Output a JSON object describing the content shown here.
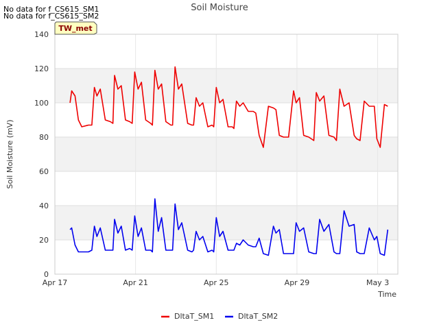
{
  "notes": [
    "No data for f_CS615_SM1",
    "No data for f_CS615_SM2"
  ],
  "badge": "TW_met",
  "chart_data": {
    "type": "line",
    "title": "Soil Moisture",
    "xlabel": "Time",
    "ylabel": "Soil Moisture (mV)",
    "ylim": [
      0,
      140
    ],
    "yticks": [
      0,
      20,
      40,
      60,
      80,
      100,
      120,
      140
    ],
    "xlim": [
      "2023-04-17",
      "2023-05-04"
    ],
    "xticks": [
      {
        "date": "2023-04-17",
        "label": "Apr 17"
      },
      {
        "date": "2023-04-21",
        "label": "Apr 21"
      },
      {
        "date": "2023-04-25",
        "label": "Apr 25"
      },
      {
        "date": "2023-04-29",
        "label": "Apr 29"
      },
      {
        "date": "2023-05-03",
        "label": "May 3"
      }
    ],
    "grid": true,
    "legend": "bottom",
    "series": [
      {
        "name": "DltaT_SM1",
        "color": "#ee0000",
        "x": [
          "2023-04-17 18:00",
          "2023-04-17 20:00",
          "2023-04-18 00:00",
          "2023-04-18 04:00",
          "2023-04-18 08:00",
          "2023-04-18 16:00",
          "2023-04-18 20:00",
          "2023-04-18 23:00",
          "2023-04-19 02:00",
          "2023-04-19 06:00",
          "2023-04-19 12:00",
          "2023-04-19 18:00",
          "2023-04-19 21:00",
          "2023-04-19 23:00",
          "2023-04-20 03:00",
          "2023-04-20 07:00",
          "2023-04-20 12:00",
          "2023-04-20 17:00",
          "2023-04-20 20:00",
          "2023-04-20 23:00",
          "2023-04-21 03:00",
          "2023-04-21 07:00",
          "2023-04-21 12:00",
          "2023-04-21 18:00",
          "2023-04-21 20:00",
          "2023-04-21 23:00",
          "2023-04-22 03:00",
          "2023-04-22 07:00",
          "2023-04-22 12:00",
          "2023-04-22 18:00",
          "2023-04-22 20:00",
          "2023-04-22 23:00",
          "2023-04-23 03:00",
          "2023-04-23 07:00",
          "2023-04-23 14:00",
          "2023-04-23 19:00",
          "2023-04-23 21:00",
          "2023-04-24 00:00",
          "2023-04-24 04:00",
          "2023-04-24 08:00",
          "2023-04-24 14:00",
          "2023-04-24 19:00",
          "2023-04-24 21:00",
          "2023-04-25 00:00",
          "2023-04-25 04:00",
          "2023-04-25 08:00",
          "2023-04-25 14:00",
          "2023-04-25 19:00",
          "2023-04-25 21:00",
          "2023-04-26 00:00",
          "2023-04-26 04:00",
          "2023-04-26 08:00",
          "2023-04-26 14:00",
          "2023-04-26 20:00",
          "2023-04-26 23:00",
          "2023-04-27 03:00",
          "2023-04-27 08:00",
          "2023-04-27 14:00",
          "2023-04-27 20:00",
          "2023-04-27 23:00",
          "2023-04-28 03:00",
          "2023-04-28 08:00",
          "2023-04-28 14:00",
          "2023-04-28 20:00",
          "2023-04-28 23:00",
          "2023-04-29 03:00",
          "2023-04-29 08:00",
          "2023-04-29 14:00",
          "2023-04-29 20:00",
          "2023-04-29 23:00",
          "2023-04-30 03:00",
          "2023-04-30 08:00",
          "2023-04-30 14:00",
          "2023-04-30 20:00",
          "2023-04-30 23:00",
          "2023-05-01 03:00",
          "2023-05-01 08:00",
          "2023-05-01 14:00",
          "2023-05-01 20:00",
          "2023-05-01 23:00",
          "2023-05-02 03:00",
          "2023-05-02 08:00",
          "2023-05-02 14:00",
          "2023-05-02 20:00",
          "2023-05-02 23:00",
          "2023-05-03 03:00",
          "2023-05-03 08:00",
          "2023-05-03 12:00"
        ],
        "y": [
          100,
          107,
          104,
          90,
          86,
          87,
          87,
          109,
          104,
          108,
          90,
          89,
          88,
          116,
          108,
          110,
          90,
          89,
          88,
          118,
          108,
          112,
          90,
          88,
          87,
          119,
          108,
          111,
          89,
          87,
          87,
          121,
          108,
          111,
          88,
          87,
          87,
          103,
          98,
          100,
          86,
          87,
          86,
          109,
          100,
          102,
          86,
          86,
          85,
          101,
          98,
          100,
          95,
          95,
          94,
          81,
          74,
          98,
          97,
          96,
          81,
          80,
          80,
          107,
          100,
          103,
          81,
          80,
          78,
          106,
          101,
          104,
          81,
          80,
          78,
          108,
          98,
          100,
          81,
          79,
          78,
          101,
          98,
          98,
          79,
          74,
          99,
          98
        ]
      },
      {
        "name": "DltaT_SM2",
        "color": "#0000ee",
        "x": [
          "2023-04-17 18:00",
          "2023-04-17 20:00",
          "2023-04-18 00:00",
          "2023-04-18 04:00",
          "2023-04-18 08:00",
          "2023-04-18 16:00",
          "2023-04-18 20:00",
          "2023-04-18 23:00",
          "2023-04-19 02:00",
          "2023-04-19 06:00",
          "2023-04-19 12:00",
          "2023-04-19 18:00",
          "2023-04-19 21:00",
          "2023-04-19 23:00",
          "2023-04-20 03:00",
          "2023-04-20 07:00",
          "2023-04-20 12:00",
          "2023-04-20 17:00",
          "2023-04-20 20:00",
          "2023-04-20 23:00",
          "2023-04-21 03:00",
          "2023-04-21 07:00",
          "2023-04-21 12:00",
          "2023-04-21 18:00",
          "2023-04-21 20:00",
          "2023-04-21 23:00",
          "2023-04-22 03:00",
          "2023-04-22 07:00",
          "2023-04-22 12:00",
          "2023-04-22 18:00",
          "2023-04-22 20:00",
          "2023-04-22 23:00",
          "2023-04-23 03:00",
          "2023-04-23 07:00",
          "2023-04-23 14:00",
          "2023-04-23 19:00",
          "2023-04-23 21:00",
          "2023-04-24 00:00",
          "2023-04-24 04:00",
          "2023-04-24 08:00",
          "2023-04-24 14:00",
          "2023-04-24 19:00",
          "2023-04-24 21:00",
          "2023-04-25 00:00",
          "2023-04-25 04:00",
          "2023-04-25 08:00",
          "2023-04-25 14:00",
          "2023-04-25 19:00",
          "2023-04-25 21:00",
          "2023-04-26 00:00",
          "2023-04-26 04:00",
          "2023-04-26 08:00",
          "2023-04-26 14:00",
          "2023-04-26 20:00",
          "2023-04-26 23:00",
          "2023-04-27 03:00",
          "2023-04-27 08:00",
          "2023-04-27 14:00",
          "2023-04-27 20:00",
          "2023-04-27 23:00",
          "2023-04-28 03:00",
          "2023-04-28 08:00",
          "2023-04-28 14:00",
          "2023-04-28 20:00",
          "2023-04-28 23:00",
          "2023-04-29 03:00",
          "2023-04-29 08:00",
          "2023-04-29 14:00",
          "2023-04-29 20:00",
          "2023-04-29 23:00",
          "2023-04-30 03:00",
          "2023-04-30 08:00",
          "2023-04-30 14:00",
          "2023-04-30 20:00",
          "2023-04-30 23:00",
          "2023-05-01 03:00",
          "2023-05-01 08:00",
          "2023-05-01 14:00",
          "2023-05-01 20:00",
          "2023-05-01 23:00",
          "2023-05-02 03:00",
          "2023-05-02 08:00",
          "2023-05-02 14:00",
          "2023-05-02 20:00",
          "2023-05-02 23:00",
          "2023-05-03 03:00",
          "2023-05-03 08:00",
          "2023-05-03 12:00"
        ],
        "y": [
          26,
          27,
          17,
          13,
          13,
          13,
          14,
          28,
          22,
          27,
          14,
          14,
          14,
          32,
          24,
          28,
          14,
          15,
          14,
          34,
          22,
          27,
          14,
          14,
          13,
          44,
          25,
          33,
          14,
          14,
          14,
          41,
          26,
          30,
          14,
          13,
          14,
          25,
          20,
          22,
          13,
          14,
          13,
          33,
          22,
          25,
          14,
          14,
          14,
          18,
          17,
          20,
          17,
          16,
          16,
          21,
          12,
          11,
          28,
          24,
          26,
          12,
          12,
          12,
          30,
          25,
          27,
          13,
          12,
          12,
          32,
          25,
          29,
          13,
          12,
          12,
          37,
          28,
          29,
          13,
          12,
          12,
          27,
          20,
          22,
          12,
          11,
          26
        ]
      }
    ]
  }
}
